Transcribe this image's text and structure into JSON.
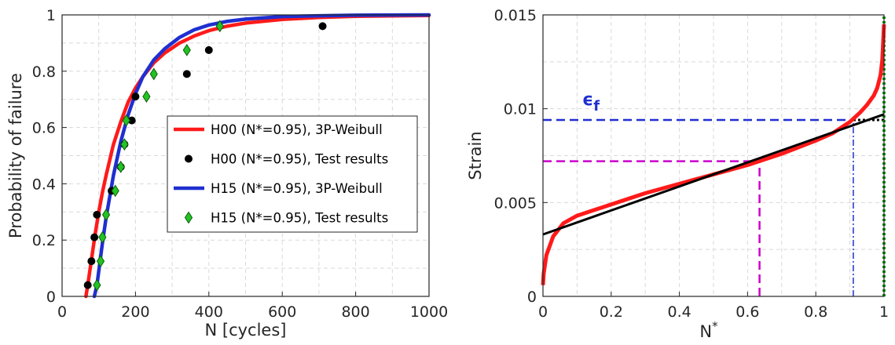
{
  "colors": {
    "h00_fit": "#ff1a1a",
    "h00_test": "#000000",
    "h15_fit": "#1f2fd0",
    "h15_test": "#22c322",
    "fit_line": "#000000",
    "ef_line": "#1f2fd0",
    "mid_line": "#cc00cc",
    "end_line": "#119911"
  },
  "chart_data": [
    {
      "type": "line",
      "xlabel": "N [cycles]",
      "ylabel": "Probability of failure",
      "xlim": [
        0,
        1000
      ],
      "ylim": [
        0,
        1
      ],
      "xticks": [
        "0",
        "200",
        "400",
        "600",
        "800",
        "1000"
      ],
      "yticks": [
        "0",
        "0.2",
        "0.4",
        "0.6",
        "0.8",
        "1"
      ],
      "grid": true,
      "legend_position": "center-right",
      "series": [
        {
          "name": "H00 (N*=0.95), 3P-Weibull",
          "kind": "line",
          "color_key": "h00_fit",
          "x": [
            65,
            70,
            80,
            90,
            100,
            110,
            120,
            140,
            160,
            180,
            200,
            220,
            250,
            280,
            320,
            360,
            400,
            450,
            500,
            600,
            700,
            800,
            1000
          ],
          "y": [
            0.0,
            0.04,
            0.13,
            0.22,
            0.3,
            0.37,
            0.43,
            0.54,
            0.62,
            0.69,
            0.74,
            0.78,
            0.83,
            0.865,
            0.9,
            0.925,
            0.944,
            0.96,
            0.971,
            0.984,
            0.991,
            0.995,
            0.998
          ]
        },
        {
          "name": "H00 (N*=0.95), Test results",
          "kind": "scatter",
          "color_key": "h00_test",
          "x": [
            70,
            80,
            88,
            95,
            135,
            160,
            170,
            190,
            200,
            340,
            400,
            710
          ],
          "y": [
            0.04,
            0.125,
            0.21,
            0.29,
            0.375,
            0.46,
            0.54,
            0.625,
            0.71,
            0.79,
            0.875,
            0.96
          ]
        },
        {
          "name": "H15 (N*=0.95), 3P-Weibull",
          "kind": "line",
          "color_key": "h15_fit",
          "x": [
            88,
            95,
            100,
            110,
            120,
            140,
            160,
            180,
            200,
            220,
            250,
            280,
            320,
            360,
            400,
            450,
            500,
            600,
            700,
            800,
            1000
          ],
          "y": [
            0.0,
            0.04,
            0.09,
            0.19,
            0.28,
            0.43,
            0.55,
            0.645,
            0.72,
            0.78,
            0.84,
            0.88,
            0.92,
            0.947,
            0.964,
            0.977,
            0.985,
            0.994,
            0.997,
            0.999,
            1.0
          ]
        },
        {
          "name": "H15 (N*=0.95), Test results",
          "kind": "scatter",
          "color_key": "h15_test",
          "x": [
            95,
            105,
            110,
            120,
            145,
            160,
            170,
            175,
            230,
            250,
            340,
            430
          ],
          "y": [
            0.04,
            0.125,
            0.21,
            0.29,
            0.375,
            0.46,
            0.54,
            0.625,
            0.71,
            0.79,
            0.875,
            0.96
          ]
        }
      ]
    },
    {
      "type": "line",
      "xlabel": "N*",
      "ylabel": "Strain",
      "xlim": [
        0,
        1
      ],
      "ylim": [
        0,
        0.015
      ],
      "xticks": [
        "0",
        "0.2",
        "0.4",
        "0.6",
        "0.8",
        "1"
      ],
      "yticks": [
        "0",
        "0.005",
        "0.01",
        "0.015"
      ],
      "grid": true,
      "annotation": "ϵ",
      "annotation_sub": "f",
      "series": [
        {
          "kind": "line",
          "color_key": "h00_fit",
          "x": [
            0,
            0.002,
            0.01,
            0.03,
            0.06,
            0.1,
            0.15,
            0.2,
            0.3,
            0.4,
            0.5,
            0.6,
            0.7,
            0.8,
            0.85,
            0.9,
            0.93,
            0.95,
            0.97,
            0.98,
            0.99,
            0.995,
            1.0
          ],
          "y": [
            0.0006,
            0.0012,
            0.0022,
            0.0032,
            0.0039,
            0.0043,
            0.0046,
            0.0049,
            0.0055,
            0.006,
            0.0065,
            0.007,
            0.0076,
            0.0083,
            0.0087,
            0.0093,
            0.0098,
            0.0102,
            0.0107,
            0.0111,
            0.0118,
            0.0126,
            0.0145
          ]
        },
        {
          "kind": "line",
          "color_key": "fit_line",
          "x": [
            0,
            1.0
          ],
          "y": [
            0.0033,
            0.0097
          ]
        }
      ],
      "reference_lines": [
        {
          "kind": "h-dashed",
          "color_key": "ef_line",
          "y": 0.0094,
          "x_from": 0,
          "x_to": 0.91
        },
        {
          "kind": "h-dotted",
          "color_key": "fit_line",
          "y": 0.0094,
          "x_from": 0.91,
          "x_to": 1.0
        },
        {
          "kind": "v-dashdot",
          "color_key": "ef_line",
          "x": 0.91,
          "y_from": 0,
          "y_to": 0.0094
        },
        {
          "kind": "h-dashed",
          "color_key": "mid_line",
          "y": 0.0072,
          "x_from": 0,
          "x_to": 0.635
        },
        {
          "kind": "v-dashed",
          "color_key": "mid_line",
          "x": 0.635,
          "y_from": 0,
          "y_to": 0.0072
        },
        {
          "kind": "v-dotted",
          "color_key": "end_line",
          "x": 1.0,
          "y_from": 0,
          "y_to": 0.015
        }
      ]
    }
  ]
}
